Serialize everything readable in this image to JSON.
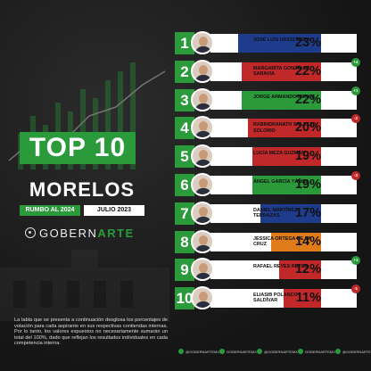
{
  "header": {
    "title": "TOP 10",
    "state": "MORELOS",
    "rumbo": "RUMBO AL 2024",
    "fecha": "JULIO 2023",
    "brand_part1": "GOBERN",
    "brand_part2": "ARTE"
  },
  "disclaimer": "La tabla que se presenta a continuación desglosa los porcentajes de votación para cada aspirante en sus respectivas contiendas internas. Por lo tanto, los valores expuestos no necesariamente sumarán un total del 100%, dado que reflejan los resultados individuales en cada competencia interna.",
  "colors": {
    "green": "#2a9a3a",
    "blue": "#1f3b8c",
    "red": "#c0282a",
    "orange": "#e07b1a"
  },
  "ranking": [
    {
      "rank": "1",
      "name": "JOSÉ LUIS URIÓSTEGUI",
      "pct": "23%",
      "fill": 0.75,
      "color": "#1f3b8c",
      "change": ""
    },
    {
      "rank": "2",
      "name": "MARGARITA GONZÁLEZ SARAVIA",
      "pct": "22%",
      "fill": 0.72,
      "color": "#c0282a",
      "change": "+4"
    },
    {
      "rank": "3",
      "name": "JORGE ARMANDO MEADE",
      "pct": "22%",
      "fill": 0.72,
      "color": "#2a9a3a",
      "change": "+1"
    },
    {
      "rank": "4",
      "name": "RABINDRANATH SALAZAR SOLORIO",
      "pct": "20%",
      "fill": 0.66,
      "color": "#c0282a",
      "change": "-2"
    },
    {
      "rank": "5",
      "name": "LUCÍA MEZA GUZMÁN",
      "pct": "19%",
      "fill": 0.62,
      "color": "#c0282a",
      "change": ""
    },
    {
      "rank": "6",
      "name": "ÁNGEL GARCÍA YÁÑEZ",
      "pct": "19%",
      "fill": 0.62,
      "color": "#2a9a3a",
      "change": "-3"
    },
    {
      "rank": "7",
      "name": "DANIEL MARTÍNEZ TERRAZAS",
      "pct": "17%",
      "fill": 0.55,
      "color": "#1f3b8c",
      "change": ""
    },
    {
      "rank": "8",
      "name": "JESSICA ORTEGA DE LA CRUZ",
      "pct": "14%",
      "fill": 0.45,
      "color": "#e07b1a",
      "change": ""
    },
    {
      "rank": "9",
      "name": "RAFAEL REYES REYES",
      "pct": "12%",
      "fill": 0.38,
      "color": "#c0282a",
      "change": "+1"
    },
    {
      "rank": "10",
      "name": "ELIASIB POLANCO SALDÍVAR",
      "pct": "11%",
      "fill": 0.34,
      "color": "#c0282a",
      "change": "-1"
    }
  ],
  "footer": [
    "@GOBERNARTEMX",
    "GOBERNARTEMX",
    "@GOBERNARTEMX",
    "GOBERNARTEMX",
    "@GOBERNARTE"
  ]
}
